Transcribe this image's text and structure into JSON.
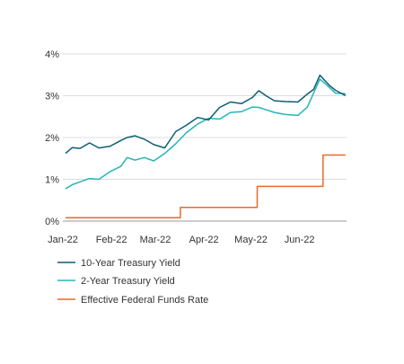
{
  "chart_data": {
    "type": "line",
    "title": "",
    "xlabel": "",
    "ylabel": "",
    "ylim": [
      0,
      4
    ],
    "grid": true,
    "legend_placement": "bottom-left",
    "y_ticks": [
      "0%",
      "1%",
      "2%",
      "3%",
      "4%"
    ],
    "x_ticks": [
      "Jan-22",
      "Feb-22",
      "Mar-22",
      "Apr-22",
      "May-22",
      "Jun-22"
    ],
    "series": [
      {
        "name": "10-Year Treasury Yield",
        "color": "#0d5e73",
        "x": [
          "2022-01-03",
          "2022-01-07",
          "2022-01-12",
          "2022-01-18",
          "2022-01-24",
          "2022-01-31",
          "2022-02-07",
          "2022-02-11",
          "2022-02-16",
          "2022-02-22",
          "2022-02-28",
          "2022-03-07",
          "2022-03-14",
          "2022-03-21",
          "2022-03-28",
          "2022-04-04",
          "2022-04-11",
          "2022-04-18",
          "2022-04-25",
          "2022-05-02",
          "2022-05-06",
          "2022-05-11",
          "2022-05-16",
          "2022-05-23",
          "2022-05-31",
          "2022-06-06",
          "2022-06-10",
          "2022-06-14",
          "2022-06-20",
          "2022-06-24",
          "2022-06-30"
        ],
        "y": [
          1.63,
          1.76,
          1.74,
          1.87,
          1.75,
          1.79,
          1.93,
          2.0,
          2.04,
          1.96,
          1.83,
          1.75,
          2.14,
          2.3,
          2.48,
          2.42,
          2.72,
          2.85,
          2.81,
          2.96,
          3.12,
          2.99,
          2.88,
          2.86,
          2.85,
          3.04,
          3.15,
          3.49,
          3.25,
          3.13,
          3.01
        ]
      },
      {
        "name": "2-Year Treasury Yield",
        "color": "#26b5b8",
        "x": [
          "2022-01-03",
          "2022-01-07",
          "2022-01-12",
          "2022-01-18",
          "2022-01-24",
          "2022-01-31",
          "2022-02-07",
          "2022-02-11",
          "2022-02-16",
          "2022-02-22",
          "2022-02-28",
          "2022-03-07",
          "2022-03-14",
          "2022-03-21",
          "2022-03-28",
          "2022-04-04",
          "2022-04-11",
          "2022-04-18",
          "2022-04-25",
          "2022-05-02",
          "2022-05-06",
          "2022-05-11",
          "2022-05-16",
          "2022-05-23",
          "2022-05-31",
          "2022-06-06",
          "2022-06-10",
          "2022-06-14",
          "2022-06-20",
          "2022-06-24",
          "2022-06-30"
        ],
        "y": [
          0.78,
          0.87,
          0.94,
          1.02,
          1.0,
          1.18,
          1.31,
          1.52,
          1.46,
          1.52,
          1.44,
          1.62,
          1.85,
          2.12,
          2.32,
          2.46,
          2.44,
          2.6,
          2.62,
          2.73,
          2.72,
          2.66,
          2.6,
          2.55,
          2.53,
          2.73,
          3.06,
          3.4,
          3.2,
          3.06,
          3.05
        ]
      },
      {
        "name": "Effective Federal Funds Rate",
        "color": "#e86a2d",
        "x": [
          "2022-01-03",
          "2022-03-17",
          "2022-03-17",
          "2022-05-05",
          "2022-05-05",
          "2022-06-16",
          "2022-06-16",
          "2022-06-30"
        ],
        "y": [
          0.08,
          0.08,
          0.33,
          0.33,
          0.83,
          0.83,
          1.58,
          1.58
        ]
      }
    ]
  }
}
